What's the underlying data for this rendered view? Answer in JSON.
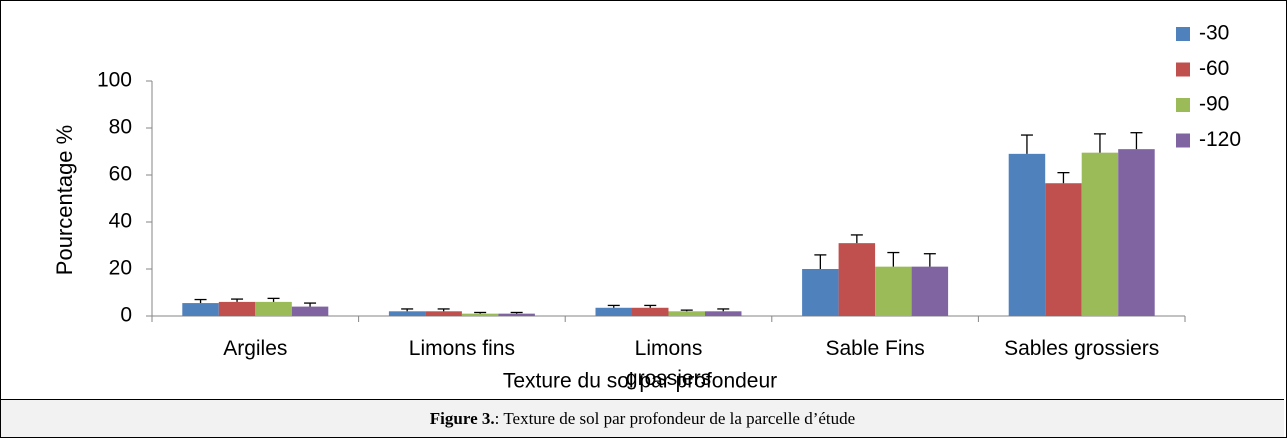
{
  "chart_data": {
    "type": "bar",
    "x_label": "Texture du sol par profondeur",
    "y_label": "Pourcentage %",
    "categories": [
      "Argiles",
      "Limons fins",
      "Limons grossiers",
      "Sable Fins",
      "Sables grossiers"
    ],
    "series": [
      {
        "name": "-30",
        "color": "#4f81bd",
        "values": [
          5.5,
          2,
          3.5,
          20,
          69
        ],
        "errors": [
          1.5,
          1,
          1,
          6,
          8
        ]
      },
      {
        "name": "-60",
        "color": "#c0504d",
        "values": [
          6,
          2,
          3.5,
          31,
          56.5
        ],
        "errors": [
          1.2,
          1,
          1,
          3.5,
          4.5
        ]
      },
      {
        "name": "-90",
        "color": "#9bbb59",
        "values": [
          6,
          1,
          2,
          21,
          69.5
        ],
        "errors": [
          1.5,
          0.5,
          0.5,
          6,
          8
        ]
      },
      {
        "name": "-120",
        "color": "#8064a2",
        "values": [
          4,
          1,
          2,
          21,
          71
        ],
        "errors": [
          1.5,
          0.5,
          1,
          5.5,
          7
        ]
      }
    ],
    "ylim": [
      0,
      100
    ],
    "yticks": [
      0,
      20,
      40,
      60,
      80,
      100
    ],
    "grid": false,
    "legend": "top-right"
  },
  "caption": {
    "label": "Figure 3.",
    "text": ": Texture de sol par profondeur de la parcelle d’étude"
  }
}
